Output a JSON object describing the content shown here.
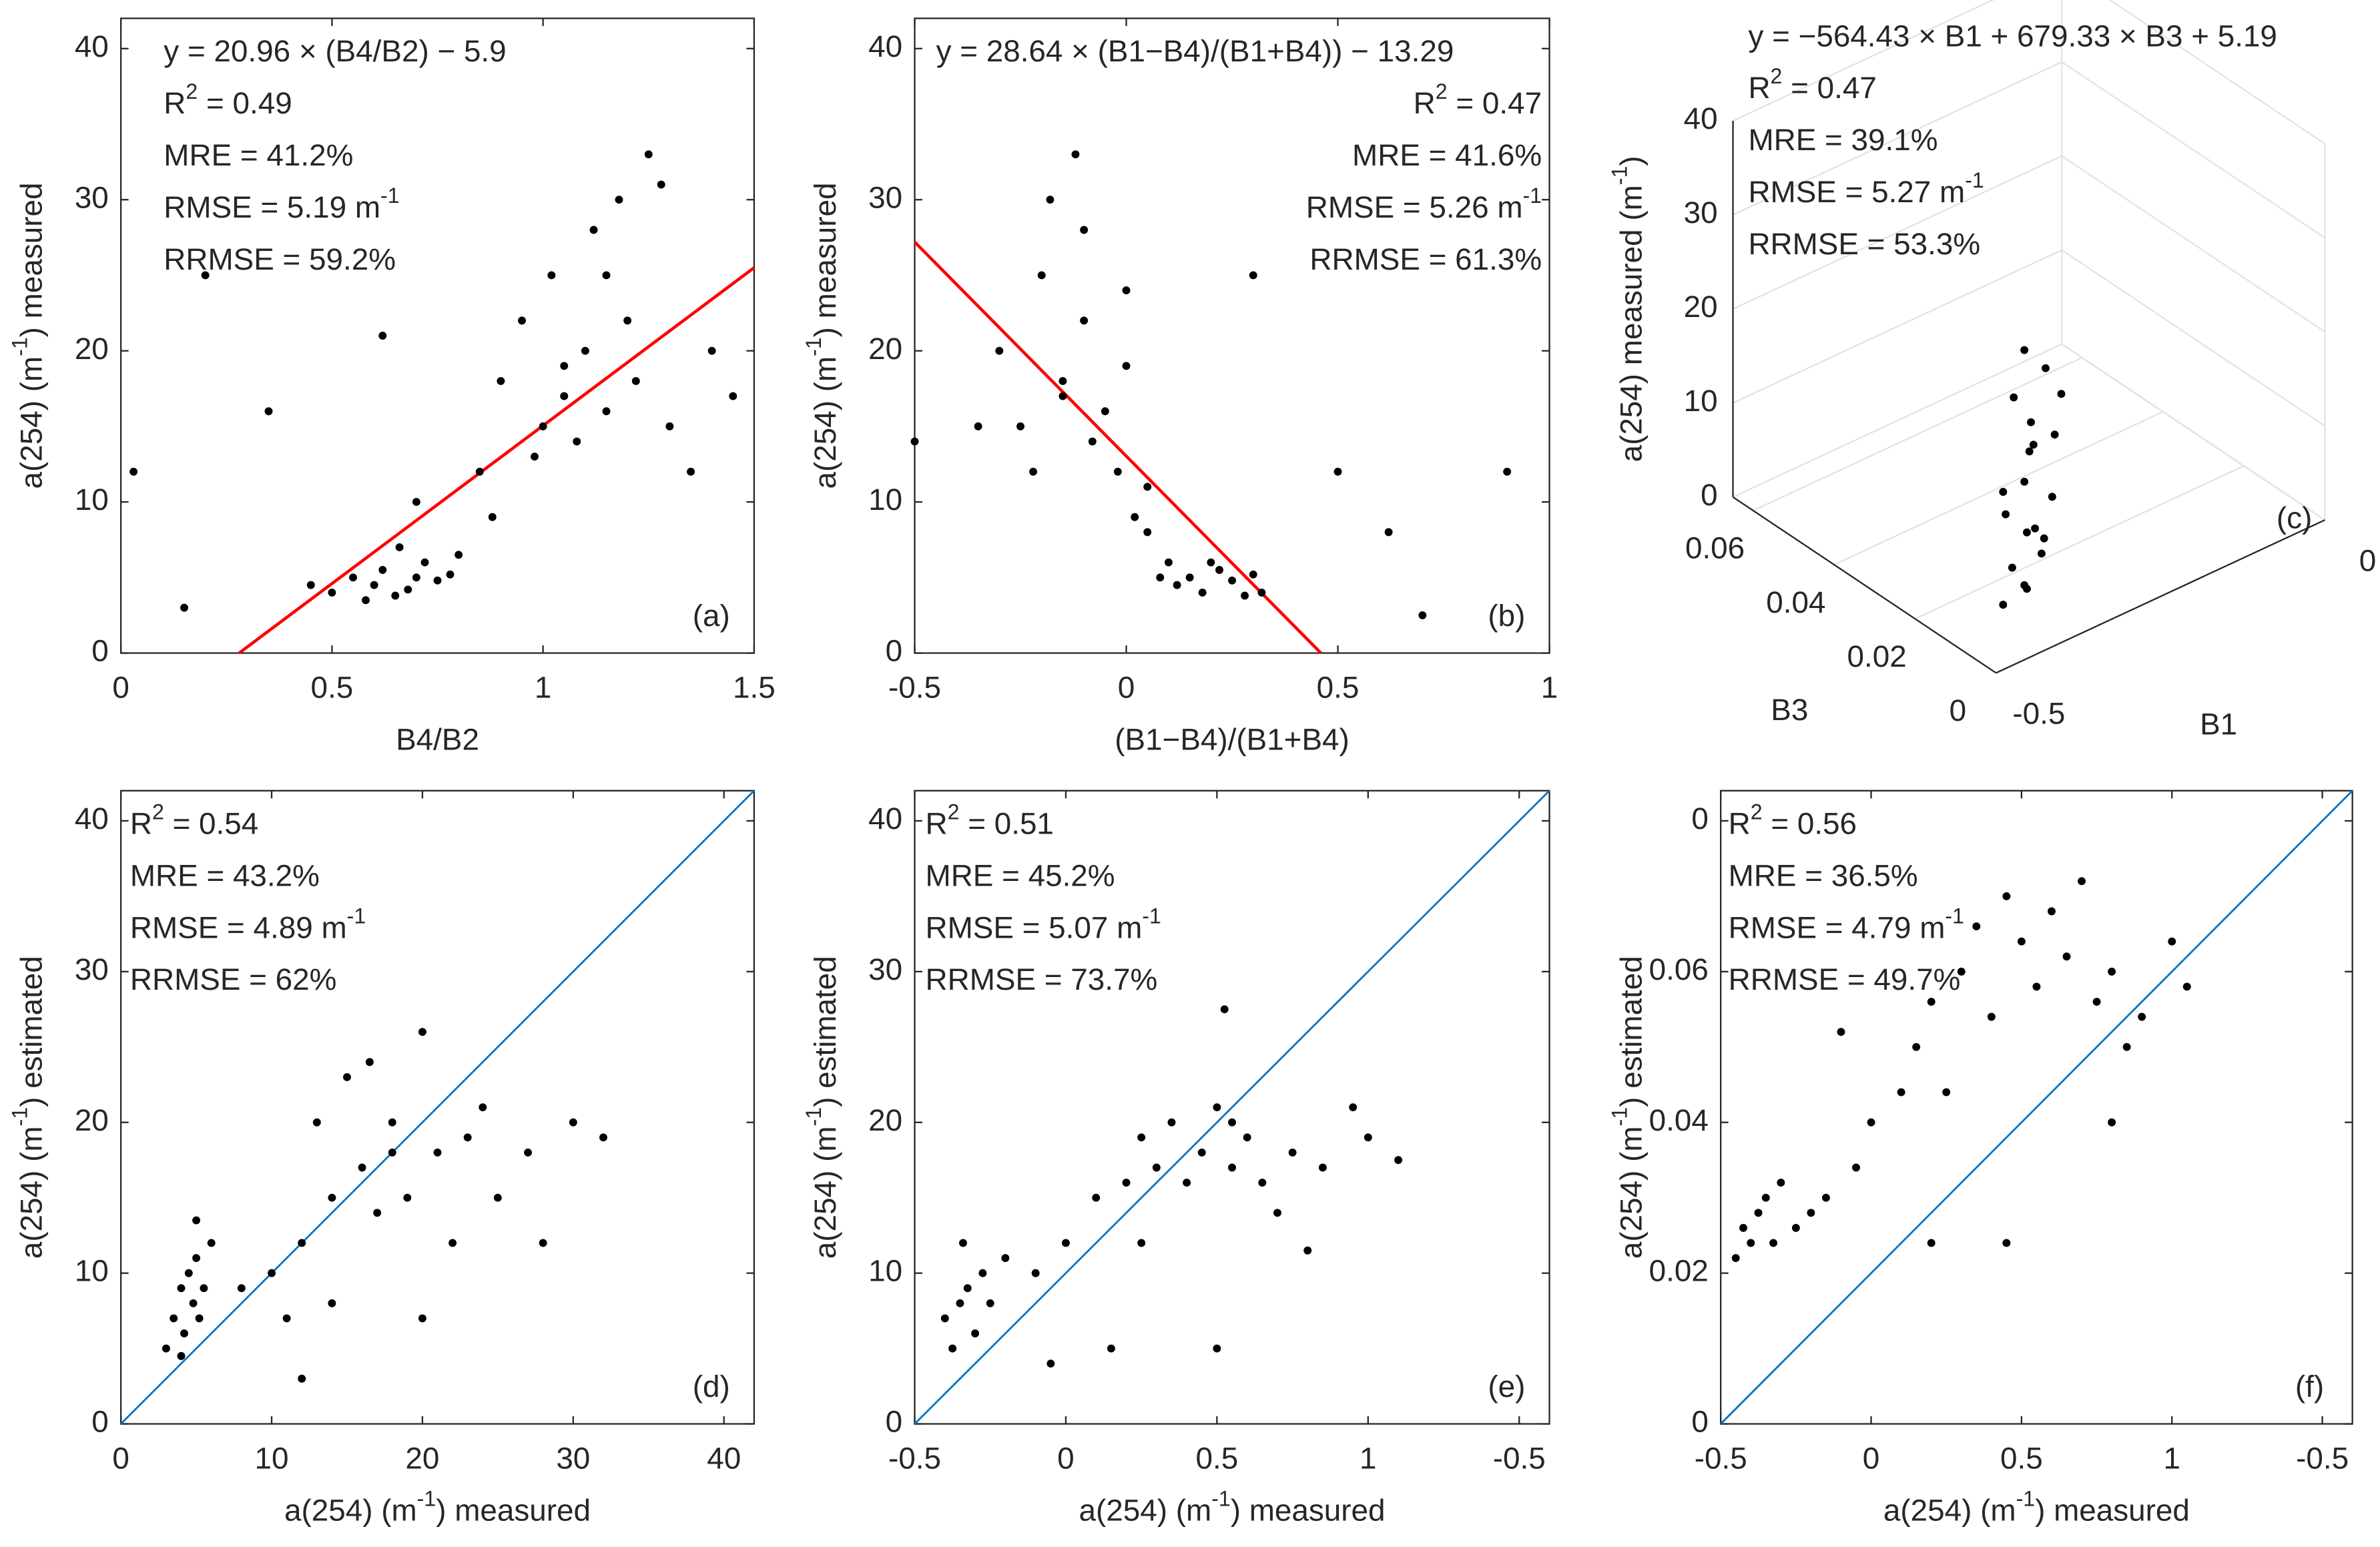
{
  "chart_data": [
    {
      "type": "scatter",
      "label": "(a)",
      "xlabel": [
        "B4/B2"
      ],
      "ylabel": [
        "a(254) (m",
        "-1",
        ")  measured"
      ],
      "annotations": [
        [
          "y = 20.96 × (B4/B2) − 5.9"
        ],
        [
          "R",
          "2",
          " = 0.49"
        ],
        [
          "MRE = 41.2%"
        ],
        [
          "RMSE = 5.19 m",
          "-1"
        ],
        [
          "RRMSE = 59.2%"
        ]
      ],
      "xlim": [
        0,
        1.5
      ],
      "ylim": [
        0,
        42
      ],
      "xticks": [
        0,
        0.5,
        1,
        1.5
      ],
      "yticks": [
        0,
        10,
        20,
        30,
        40
      ],
      "color": "#000000",
      "line": {
        "x": [
          0.28,
          1.5
        ],
        "y": [
          0,
          25.5
        ],
        "color": "#ff0000"
      },
      "x": [
        0.5,
        0.55,
        0.6,
        0.62,
        0.65,
        0.68,
        0.7,
        0.72,
        0.75,
        0.78,
        0.8,
        0.58,
        0.66,
        0.85,
        0.9,
        0.95,
        1.0,
        1.02,
        1.05,
        1.08,
        1.1,
        1.12,
        1.15,
        1.18,
        1.2,
        1.22,
        1.25,
        1.3,
        1.35,
        1.4,
        0.45,
        0.7,
        0.88,
        0.98,
        1.05,
        1.15,
        1.28,
        0.15,
        0.2,
        0.03,
        1.45,
        0.35,
        0.62
      ],
      "y": [
        4,
        5,
        4.5,
        5.5,
        3.8,
        4.2,
        5,
        6,
        4.8,
        5.2,
        6.5,
        3.5,
        7,
        12,
        18,
        22,
        15,
        25,
        17,
        14,
        20,
        28,
        16,
        30,
        22,
        18,
        33,
        15,
        12,
        20,
        4.5,
        10,
        9,
        13,
        19,
        25,
        31,
        3,
        25,
        12,
        17,
        16,
        21
      ]
    },
    {
      "type": "scatter",
      "label": "(b)",
      "xlabel": [
        "(B1−B4)/(B1+B4)"
      ],
      "ylabel": [
        "a(254) (m",
        "-1",
        ")  measured"
      ],
      "annotations": [
        [
          "y = 28.64 × (B1−B4)/(B1+B4)) − 13.29"
        ],
        [
          "R",
          "2",
          " = 0.47"
        ],
        [
          "MRE = 41.6%"
        ],
        [
          "RMSE = 5.26 m",
          "-1"
        ],
        [
          "RRMSE = 61.3%"
        ]
      ],
      "xlim": [
        -0.5,
        1
      ],
      "ylim": [
        0,
        42
      ],
      "xticks": [
        -0.5,
        0,
        0.5,
        1
      ],
      "yticks": [
        0,
        10,
        20,
        30,
        40
      ],
      "color": "#000000",
      "line": {
        "x": [
          -0.5,
          0.46
        ],
        "y": [
          27.2,
          0
        ],
        "color": "#ff0000"
      },
      "x": [
        -0.3,
        -0.25,
        -0.2,
        -0.18,
        -0.15,
        -0.12,
        -0.1,
        -0.08,
        -0.05,
        -0.02,
        0,
        0.02,
        0.05,
        0.08,
        0.1,
        0.12,
        0.15,
        0.18,
        0.2,
        0.22,
        0.25,
        0.28,
        0.3,
        0.32,
        -0.22,
        -0.15,
        -0.1,
        0,
        0.05,
        -0.35,
        0.5,
        0.62,
        0.9,
        0.7,
        -0.5,
        0.3
      ],
      "y": [
        20,
        15,
        25,
        30,
        18,
        33,
        22,
        14,
        16,
        12,
        19,
        9,
        11,
        5,
        6,
        4.5,
        5,
        4,
        6,
        5.5,
        4.8,
        3.8,
        5.2,
        4,
        12,
        17,
        28,
        24,
        8,
        15,
        12,
        8,
        12,
        2.5,
        14,
        25
      ]
    },
    {
      "type": "scatter3d",
      "label": "(c)",
      "xlabel": [
        "B1"
      ],
      "ylabel": [
        "B3"
      ],
      "zlabel": [
        "a(254) measured (m",
        "-1",
        ")"
      ],
      "annotations": [
        [
          "y = −564.43 × B1 + 679.33 × B3 + 5.19"
        ],
        [
          "R",
          "2",
          " = 0.47"
        ],
        [
          "MRE = 39.1%"
        ],
        [
          "RMSE = 5.27 m",
          "-1"
        ],
        [
          "RRMSE = 53.3%"
        ]
      ],
      "xlim": [
        -0.5,
        0
      ],
      "ylim": [
        0,
        0.065
      ],
      "zlim": [
        0,
        40
      ],
      "xticks": [
        -0.5,
        0
      ],
      "yticks": [
        0,
        0.02,
        0.04,
        0.06
      ],
      "zticks": [
        0,
        10,
        20,
        30,
        40
      ],
      "color": "#000000",
      "x": [
        -0.44,
        -0.42,
        -0.4,
        -0.41,
        -0.43,
        -0.39,
        -0.42,
        -0.4,
        -0.38,
        -0.41,
        -0.43,
        -0.4,
        -0.42,
        -0.39,
        -0.41,
        -0.44,
        -0.4,
        -0.37,
        -0.42,
        -0.41
      ],
      "y": [
        0.008,
        0.006,
        0.005,
        0.007,
        0.009,
        0.004,
        0.006,
        0.008,
        0.005,
        0.006,
        0.007,
        0.004,
        0.009,
        0.006,
        0.005,
        0.008,
        0.007,
        0.005,
        0.006,
        0.007
      ],
      "z": [
        3,
        5,
        8,
        10,
        12,
        14,
        16,
        18,
        20,
        22,
        25,
        28,
        6,
        9,
        11,
        15,
        19,
        24,
        30,
        4
      ]
    },
    {
      "type": "scatter",
      "label": "(d)",
      "xlabel": [
        "a(254) (m",
        "-1",
        ")  measured"
      ],
      "ylabel": [
        "a(254) (m",
        "-1",
        ")  estimated"
      ],
      "annotations": [
        [
          "R",
          "2",
          " = 0.54"
        ],
        [
          "MRE = 43.2%"
        ],
        [
          "RMSE = 4.89 m",
          "-1"
        ],
        [
          "RRMSE = 62%"
        ]
      ],
      "xlim": [
        0,
        42
      ],
      "ylim": [
        0,
        42
      ],
      "xticks": [
        0,
        10,
        20,
        30,
        40
      ],
      "yticks": [
        0,
        10,
        20,
        30,
        40
      ],
      "color": "#000000",
      "line": {
        "x": [
          0,
          42
        ],
        "y": [
          0,
          42
        ],
        "color": "#0072bd"
      },
      "x": [
        3,
        3.5,
        4,
        4.2,
        4.5,
        4.8,
        5,
        5.2,
        5.5,
        6,
        4,
        5,
        8,
        10,
        12,
        13,
        14,
        15,
        16,
        16.5,
        17,
        18,
        19,
        20,
        21,
        22,
        23,
        25,
        27,
        28,
        30,
        32,
        11,
        14,
        18,
        20,
        24,
        12
      ],
      "y": [
        5,
        7,
        9,
        6,
        10,
        8,
        11,
        7,
        9,
        12,
        4.5,
        13.5,
        9,
        10,
        12,
        20,
        15,
        23,
        17,
        24,
        14,
        20,
        15,
        26,
        18,
        12,
        19,
        15,
        18,
        12,
        20,
        19,
        7,
        8,
        18,
        7,
        21,
        3
      ]
    },
    {
      "type": "scatter",
      "label": "(e)",
      "xlabel": [
        "a(254) (m",
        "-1",
        ")  measured"
      ],
      "ylabel": [
        "a(254) (m",
        "-1",
        ")  estimated"
      ],
      "annotations": [
        [
          "R",
          "2",
          " = 0.51"
        ],
        [
          "MRE = 45.2%"
        ],
        [
          "RMSE = 5.07 m",
          "-1"
        ],
        [
          "RRMSE = 73.7%"
        ]
      ],
      "xlim": [
        0,
        42
      ],
      "ylim": [
        0,
        42
      ],
      "xticks": [
        {
          "value": 0,
          "label": "-0.5"
        },
        {
          "value": 10,
          "label": "0"
        },
        {
          "value": 20,
          "label": "0.5"
        },
        {
          "value": 30,
          "label": "1"
        },
        {
          "value": 40,
          "label": "-0.5"
        }
      ],
      "yticks": [
        0,
        10,
        20,
        30,
        40
      ],
      "color": "#000000",
      "line": {
        "x": [
          0,
          42
        ],
        "y": [
          0,
          42
        ],
        "color": "#0072bd"
      },
      "x": [
        2.5,
        3,
        3.5,
        4,
        4.5,
        2,
        3.2,
        5,
        6,
        8,
        10,
        12,
        14,
        15,
        16,
        17,
        18,
        19,
        20,
        20.5,
        21,
        22,
        23,
        24,
        25,
        27,
        29,
        30,
        32,
        9,
        13,
        15,
        20,
        21,
        26
      ],
      "y": [
        5,
        8,
        9,
        6,
        10,
        7,
        12,
        8,
        11,
        10,
        12,
        15,
        16,
        19,
        17,
        20,
        16,
        18,
        21,
        27.5,
        17,
        19,
        16,
        14,
        18,
        17,
        21,
        19,
        17.5,
        4,
        5,
        12,
        5,
        20,
        11.5
      ]
    },
    {
      "type": "scatter",
      "label": "(f)",
      "xlabel": [
        "a(254) (m",
        "-1",
        ")  measured"
      ],
      "ylabel": [
        "a(254) (m",
        "-1",
        ")  estimated"
      ],
      "annotations": [
        [
          "R",
          "2",
          " = 0.56"
        ],
        [
          "MRE = 36.5%"
        ],
        [
          "RMSE = 4.79 m",
          "-1"
        ],
        [
          "RRMSE = 49.7%"
        ]
      ],
      "xlim": [
        0,
        42
      ],
      "ylim": [
        0,
        42
      ],
      "xticks": [
        {
          "value": 0,
          "label": "-0.5"
        },
        {
          "value": 10,
          "label": "0"
        },
        {
          "value": 20,
          "label": "0.5"
        },
        {
          "value": 30,
          "label": "1"
        },
        {
          "value": 40,
          "label": "-0.5"
        }
      ],
      "yticks": [
        0,
        {
          "value": 10,
          "label": "0.02"
        },
        {
          "value": 20,
          "label": "0.04"
        },
        {
          "value": 30,
          "label": "0.06"
        },
        {
          "value": 40,
          "label": "0"
        }
      ],
      "color": "#000000",
      "line": {
        "x": [
          0,
          42
        ],
        "y": [
          0,
          42
        ],
        "color": "#0072bd"
      },
      "x": [
        1,
        1.5,
        2,
        2.5,
        3,
        3.5,
        4,
        5,
        6,
        7,
        9,
        10,
        12,
        13,
        14,
        15,
        16,
        17,
        18,
        19,
        20,
        21,
        22,
        23,
        24,
        25,
        26,
        27,
        28,
        30,
        31,
        8,
        14,
        19,
        26
      ],
      "y": [
        11,
        13,
        12,
        14,
        15,
        12,
        16,
        13,
        14,
        15,
        17,
        20,
        22,
        25,
        28,
        22,
        30,
        33,
        27,
        35,
        32,
        29,
        34,
        31,
        36,
        28,
        30,
        25,
        27,
        32,
        29,
        26,
        12,
        12,
        20
      ]
    }
  ]
}
